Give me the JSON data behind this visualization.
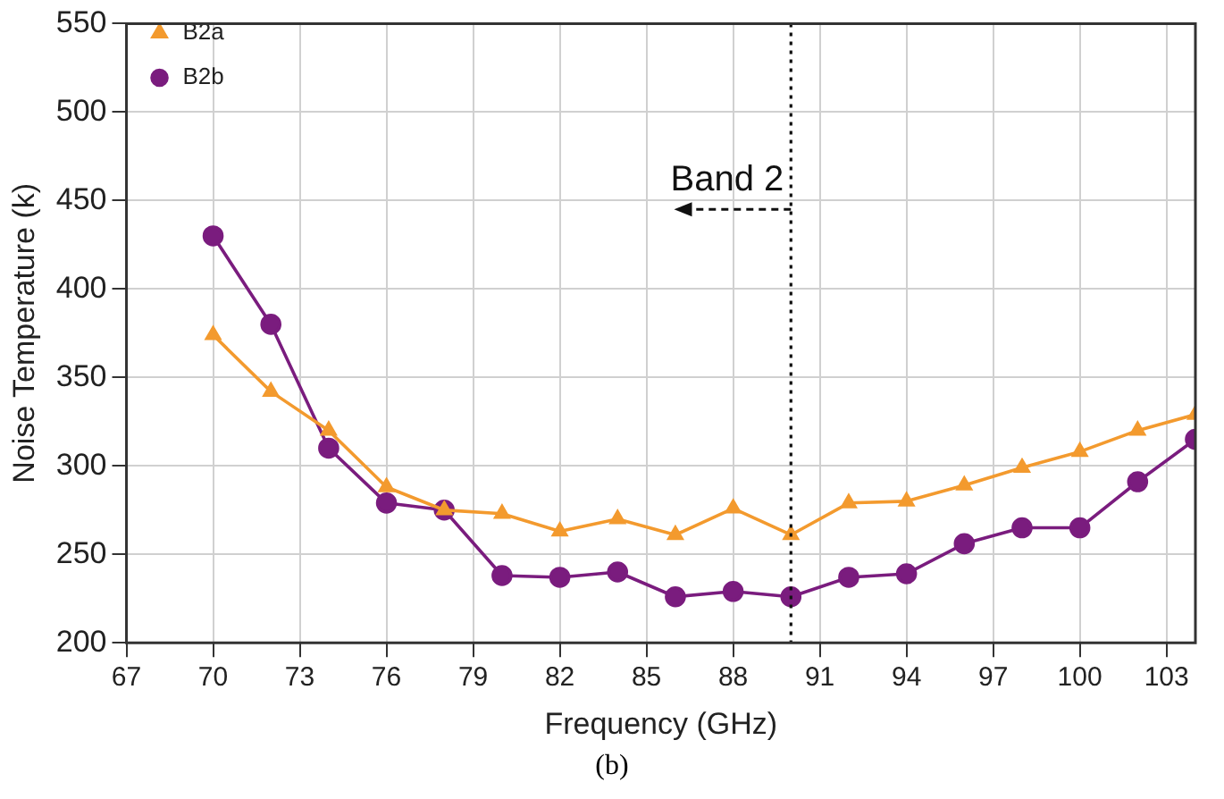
{
  "chart_data": {
    "type": "line",
    "xlabel": "Frequency (GHz)",
    "ylabel": "Noise Temperature (k)",
    "x": [
      70,
      72,
      74,
      76,
      78,
      80,
      82,
      84,
      86,
      88,
      90,
      92,
      94,
      96,
      98,
      100,
      102,
      104
    ],
    "series": [
      {
        "name": "B2a",
        "color": "#f39a2e",
        "marker": "triangle",
        "values": [
          374,
          342,
          320,
          288,
          275,
          273,
          263,
          270,
          261,
          276,
          261,
          279,
          280,
          289,
          299,
          308,
          320,
          329
        ]
      },
      {
        "name": "B2b",
        "color": "#7a1c7e",
        "marker": "circle",
        "values": [
          430,
          380,
          310,
          279,
          275,
          238,
          237,
          240,
          226,
          229,
          226,
          237,
          239,
          256,
          265,
          265,
          291,
          315
        ]
      }
    ],
    "xlim": [
      67,
      104
    ],
    "xticks": [
      67,
      70,
      73,
      76,
      79,
      82,
      85,
      88,
      91,
      94,
      97,
      100,
      103
    ],
    "ylim": [
      200,
      550
    ],
    "yticks": [
      200,
      250,
      300,
      350,
      400,
      450,
      500,
      550
    ],
    "ref_lines": [
      {
        "axis": "x",
        "value": 90,
        "line_style": "dotted",
        "color": "#111111"
      }
    ],
    "annotations": [
      {
        "text": "Band 2",
        "x": 90,
        "y": 445
      },
      "(b)"
    ],
    "grid": true,
    "legend": "top left"
  }
}
